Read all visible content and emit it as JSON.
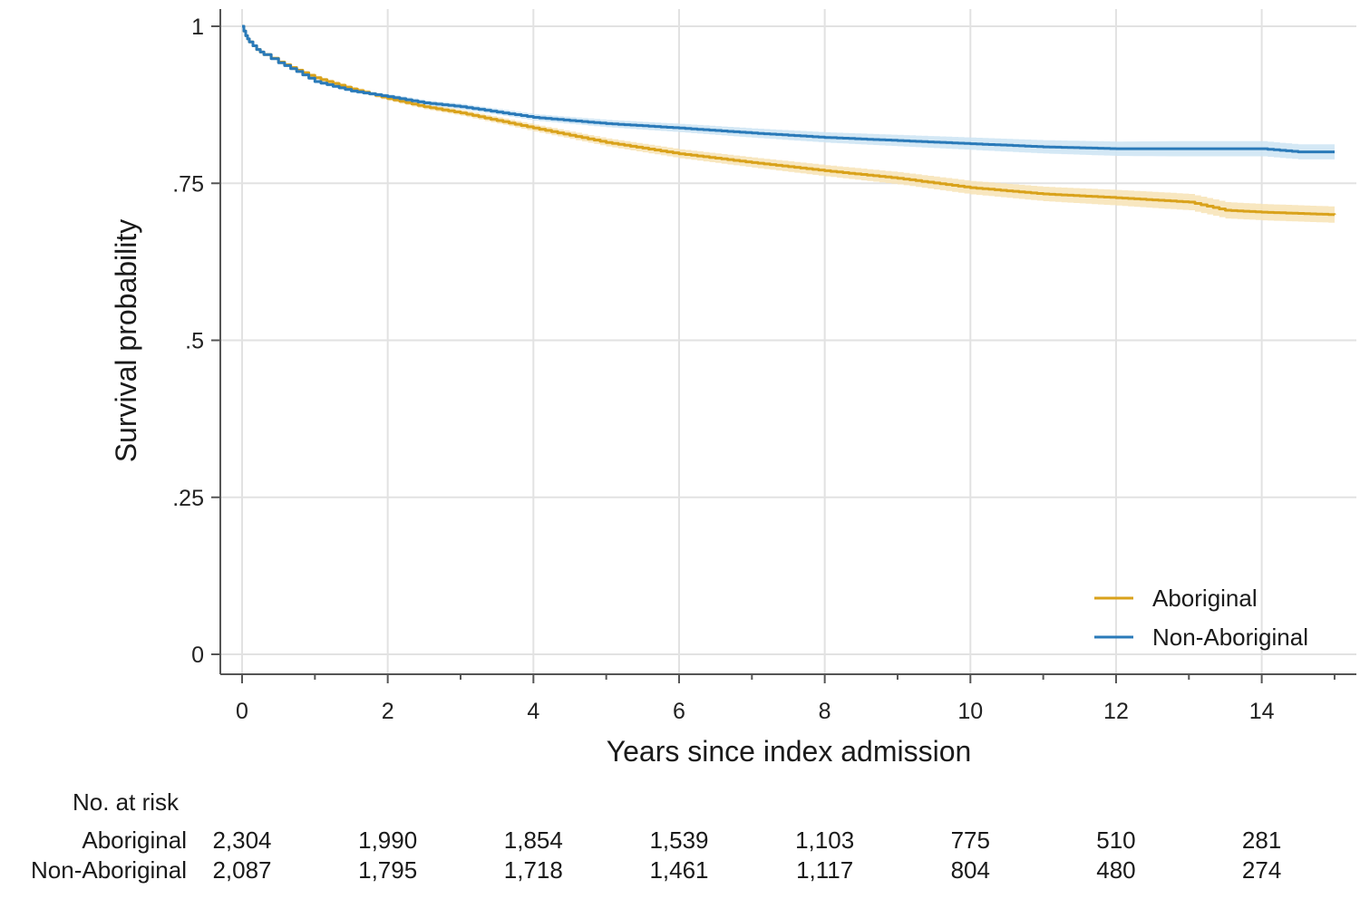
{
  "chart_data": {
    "type": "line",
    "xlabel": "Years since index admission",
    "ylabel": "Survival probability",
    "xlim": [
      0,
      15
    ],
    "ylim": [
      0,
      1
    ],
    "x_ticks": [
      0,
      2,
      4,
      6,
      8,
      10,
      12,
      14
    ],
    "x_tick_labels": [
      "0",
      "2",
      "4",
      "6",
      "8",
      "10",
      "12",
      "14"
    ],
    "y_ticks": [
      0,
      0.25,
      0.5,
      0.75,
      1
    ],
    "y_tick_labels": [
      "0",
      ".25",
      ".5",
      ".75",
      "1"
    ],
    "grid": true,
    "legend_position": "bottom-right",
    "series": [
      {
        "name": "Aboriginal",
        "color": "#d9a21b",
        "band_color": "#f7e3b5",
        "x": [
          0,
          0.05,
          0.1,
          0.2,
          0.3,
          0.5,
          0.75,
          1,
          1.5,
          2,
          2.5,
          3,
          3.5,
          4,
          5,
          6,
          7,
          8,
          9,
          10,
          11,
          12,
          13,
          13.5,
          14,
          15
        ],
        "y": [
          1,
          0.985,
          0.975,
          0.963,
          0.955,
          0.943,
          0.93,
          0.918,
          0.9,
          0.885,
          0.872,
          0.862,
          0.85,
          0.838,
          0.815,
          0.797,
          0.783,
          0.77,
          0.758,
          0.743,
          0.733,
          0.727,
          0.72,
          0.707,
          0.704,
          0.7
        ],
        "ci_half_width": 0.013
      },
      {
        "name": "Non-Aboriginal",
        "color": "#2a7ab9",
        "band_color": "#cde4f3",
        "x": [
          0,
          0.05,
          0.1,
          0.2,
          0.3,
          0.5,
          0.75,
          1,
          1.5,
          2,
          2.5,
          3,
          4,
          5,
          6,
          7,
          8,
          9,
          10,
          11,
          12,
          13,
          14,
          14.5,
          15
        ],
        "y": [
          1,
          0.985,
          0.975,
          0.963,
          0.955,
          0.942,
          0.928,
          0.912,
          0.897,
          0.888,
          0.878,
          0.872,
          0.855,
          0.845,
          0.838,
          0.83,
          0.823,
          0.818,
          0.813,
          0.808,
          0.805,
          0.805,
          0.805,
          0.8,
          0.8
        ],
        "ci_half_width": 0.012
      }
    ],
    "risk_table": {
      "title": "No. at risk",
      "times": [
        0,
        2,
        4,
        6,
        8,
        10,
        12,
        14
      ],
      "rows": [
        {
          "label": "Aboriginal",
          "values": [
            "2,304",
            "1,990",
            "1,854",
            "1,539",
            "1,103",
            "775",
            "510",
            "281"
          ]
        },
        {
          "label": "Non-Aboriginal",
          "values": [
            "2,087",
            "1,795",
            "1,718",
            "1,461",
            "1,117",
            "804",
            "480",
            "274"
          ]
        }
      ]
    }
  }
}
